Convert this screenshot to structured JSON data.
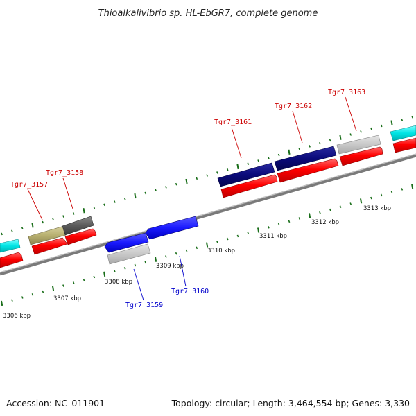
{
  "title": "Thioalkalivibrio sp. HL-EbGR7, complete genome",
  "footer": {
    "accession": "Accession: NC_011901",
    "summary": "Topology: circular; Length: 3,464,554 bp; Genes: 3,330"
  },
  "scale_labels": [
    "3306 kbp",
    "3307 kbp",
    "3308 kbp",
    "3309 kbp",
    "3310 kbp",
    "3311 kbp",
    "3312 kbp",
    "3313 kbp"
  ],
  "gene_labels": {
    "top": [
      "Tgr7_3157",
      "Tgr7_3158",
      "Tgr7_3161",
      "Tgr7_3162",
      "Tgr7_3163"
    ],
    "bottom": [
      "Tgr7_3159",
      "Tgr7_3160"
    ]
  },
  "colors": {
    "forward_label": "#cc0000",
    "reverse_label": "#0000cc",
    "cds": "#ff0000",
    "navy_gene": "#0a0a7a",
    "blue_gene": "#1a1aff",
    "olive_gene": "#b8b070",
    "dark_gray_gene": "#5a5a5a",
    "light_gray_gene": "#c8c8c8",
    "cyan_gene": "#00e5e5",
    "tick": "#1a6e1a",
    "backbone": "#808080"
  }
}
